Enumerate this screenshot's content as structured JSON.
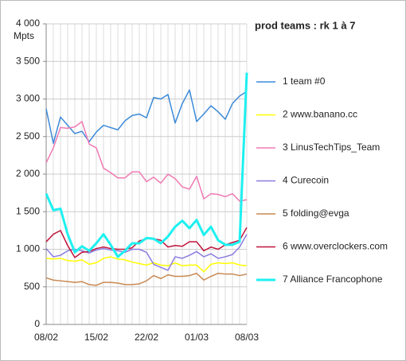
{
  "chart_data": {
    "type": "line",
    "title": "prod teams : rk 1 à 7",
    "y_label": "Mpts",
    "categories": [
      "08/02",
      null,
      null,
      null,
      null,
      null,
      null,
      "15/02",
      null,
      null,
      null,
      null,
      null,
      null,
      "22/02",
      null,
      null,
      null,
      null,
      null,
      null,
      "01/03",
      null,
      null,
      null,
      null,
      null,
      null,
      "08/03"
    ],
    "ylim": [
      0,
      4000
    ],
    "yticks": [
      0,
      500,
      {
        "value": 1000,
        "label": "1 000"
      },
      {
        "value": 1500,
        "label": "1 500"
      },
      {
        "value": 2000,
        "label": "2 000"
      },
      {
        "value": 2500,
        "label": "2 500"
      },
      {
        "value": 3000,
        "label": "3 000"
      },
      {
        "value": 3500,
        "label": "3 500"
      },
      {
        "value": 4000,
        "label": "4 000"
      }
    ],
    "grid": true,
    "legend": "right",
    "series": [
      {
        "name": "1 team #0",
        "color": "#3b8ad9",
        "width": 1.5,
        "values": [
          2870,
          2410,
          2760,
          2650,
          2540,
          2570,
          2430,
          2560,
          2650,
          2620,
          2590,
          2710,
          2780,
          2800,
          2750,
          3020,
          3000,
          3060,
          2680,
          2940,
          3120,
          2700,
          2800,
          2910,
          2830,
          2730,
          2940,
          3040,
          3100
        ]
      },
      {
        "name": "2 www.banano.cc",
        "color": "#ffff00",
        "width": 1.5,
        "values": [
          880,
          870,
          880,
          850,
          840,
          860,
          800,
          820,
          880,
          900,
          870,
          860,
          830,
          810,
          790,
          820,
          790,
          780,
          820,
          780,
          790,
          790,
          700,
          800,
          820,
          810,
          820,
          790,
          780
        ]
      },
      {
        "name": "3 LinusTechTips_Team",
        "color": "#f07ab4",
        "width": 1.5,
        "values": [
          2150,
          2350,
          2620,
          2610,
          2630,
          2700,
          2400,
          2350,
          2080,
          2020,
          1950,
          1950,
          2030,
          2030,
          1900,
          1960,
          1880,
          2000,
          1940,
          1830,
          1800,
          1970,
          1670,
          1740,
          1730,
          1700,
          1740,
          1640,
          1660
        ]
      },
      {
        "name": "4 Curecoin",
        "color": "#8a7ce0",
        "width": 1.5,
        "values": [
          1010,
          900,
          920,
          980,
          1000,
          980,
          950,
          990,
          1010,
          990,
          980,
          960,
          1000,
          1000,
          960,
          800,
          760,
          720,
          900,
          880,
          920,
          970,
          900,
          940,
          880,
          900,
          930,
          1030,
          1200
        ]
      },
      {
        "name": "5 folding@evga",
        "color": "#c98850",
        "width": 1.5,
        "values": [
          620,
          590,
          580,
          570,
          560,
          570,
          530,
          520,
          560,
          560,
          550,
          530,
          530,
          540,
          580,
          650,
          610,
          660,
          640,
          640,
          650,
          680,
          590,
          640,
          680,
          670,
          670,
          650,
          670
        ]
      },
      {
        "name": "6 www.overclockers.com",
        "color": "#c0143c",
        "width": 1.5,
        "values": [
          1100,
          1200,
          1250,
          1050,
          890,
          960,
          970,
          1010,
          1030,
          1010,
          1000,
          1000,
          1020,
          1110,
          1140,
          1140,
          1120,
          1030,
          1050,
          1040,
          1100,
          1100,
          980,
          1030,
          1000,
          1060,
          1090,
          1120,
          1290
        ]
      },
      {
        "name": "7 Alliance Francophone",
        "color": "#1ef0f0",
        "width": 3,
        "values": [
          1740,
          1520,
          1540,
          1200,
          960,
          1040,
          980,
          1080,
          1200,
          1060,
          900,
          980,
          1080,
          1080,
          1150,
          1140,
          1080,
          1170,
          1300,
          1380,
          1280,
          1390,
          1190,
          1300,
          1120,
          1060,
          1060,
          1100,
          3350
        ]
      }
    ]
  }
}
